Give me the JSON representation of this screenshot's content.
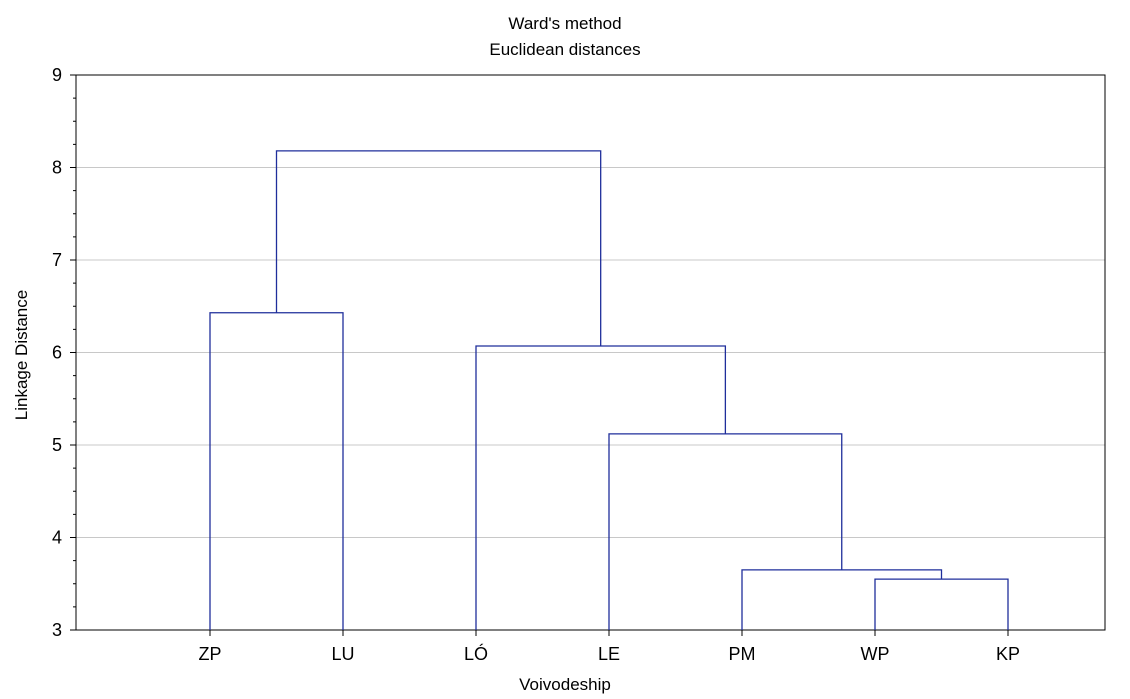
{
  "chart_data": {
    "type": "dendrogram",
    "title": "Ward's method",
    "subtitle": "Euclidean distances",
    "xlabel": "Voivodeship",
    "ylabel": "Linkage Distance",
    "ylim": [
      3,
      9
    ],
    "yticks": [
      "3",
      "4",
      "5",
      "6",
      "7",
      "8",
      "9"
    ],
    "leaves": [
      "ZP",
      "LU",
      "LÓ",
      "LE",
      "PM",
      "WP",
      "KP"
    ],
    "merges": [
      {
        "left": "leaf:WP",
        "right": "leaf:KP",
        "height": 3.55
      },
      {
        "left": "leaf:PM",
        "right": "node:0",
        "height": 3.65
      },
      {
        "left": "leaf:LE",
        "right": "node:1",
        "height": 5.12
      },
      {
        "left": "leaf:LÓ",
        "right": "node:2",
        "height": 6.07
      },
      {
        "left": "leaf:ZP",
        "right": "leaf:LU",
        "height": 6.43
      },
      {
        "left": "node:4",
        "right": "node:3",
        "height": 8.18
      }
    ],
    "grid": true,
    "line_color": "#1f2e9b",
    "grid_color": "#c8c8c8"
  }
}
